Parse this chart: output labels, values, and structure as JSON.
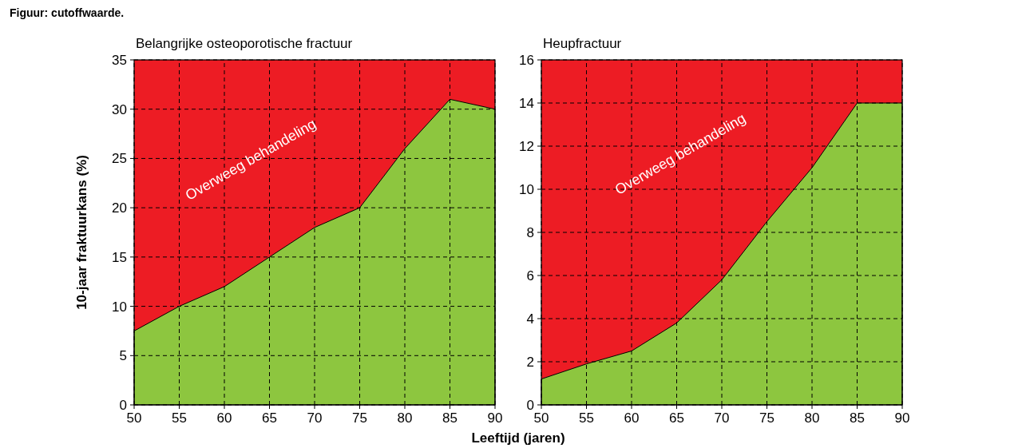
{
  "chart_data": [
    {
      "type": "area",
      "title": "Belangrijke osteoporotische fractuur",
      "xlabel": "Leeftijd (jaren)",
      "ylabel": "10-jaar fraktuurkans (%)",
      "x": [
        50,
        55,
        60,
        65,
        70,
        75,
        80,
        85,
        90
      ],
      "series": [
        {
          "color": "#8dc63f",
          "values": [
            7.5,
            10,
            12,
            15,
            18,
            20,
            26,
            31,
            30
          ]
        }
      ],
      "xlim": [
        50,
        90
      ],
      "xticks": [
        50,
        55,
        60,
        65,
        70,
        75,
        80,
        85,
        90
      ],
      "ylim": [
        0,
        35
      ],
      "yticks": [
        0,
        5,
        10,
        15,
        20,
        25,
        30,
        35
      ],
      "grid": true,
      "bands": [
        {
          "axis": "y",
          "from": 0,
          "to": 35,
          "color": "#ed1c24"
        }
      ],
      "annotations": [
        "Figuur: cutoffwaarde.",
        "Overweeg behandeling"
      ]
    },
    {
      "type": "area",
      "title": "Heupfractuur",
      "x": [
        50,
        55,
        60,
        65,
        70,
        75,
        80,
        85,
        90
      ],
      "series": [
        {
          "color": "#8dc63f",
          "values": [
            1.2,
            1.9,
            2.5,
            3.8,
            5.8,
            8.5,
            11,
            14,
            14
          ]
        }
      ],
      "xlim": [
        50,
        90
      ],
      "xticks": [
        50,
        55,
        60,
        65,
        70,
        75,
        80,
        85,
        90
      ],
      "ylim": [
        0,
        16
      ],
      "yticks": [
        0,
        2,
        4,
        6,
        8,
        10,
        12,
        14,
        16
      ],
      "grid": true,
      "bands": [
        {
          "axis": "y",
          "from": 0,
          "to": 16,
          "color": "#ed1c24"
        }
      ],
      "annotations": [
        "Overweeg behandeling"
      ]
    }
  ]
}
